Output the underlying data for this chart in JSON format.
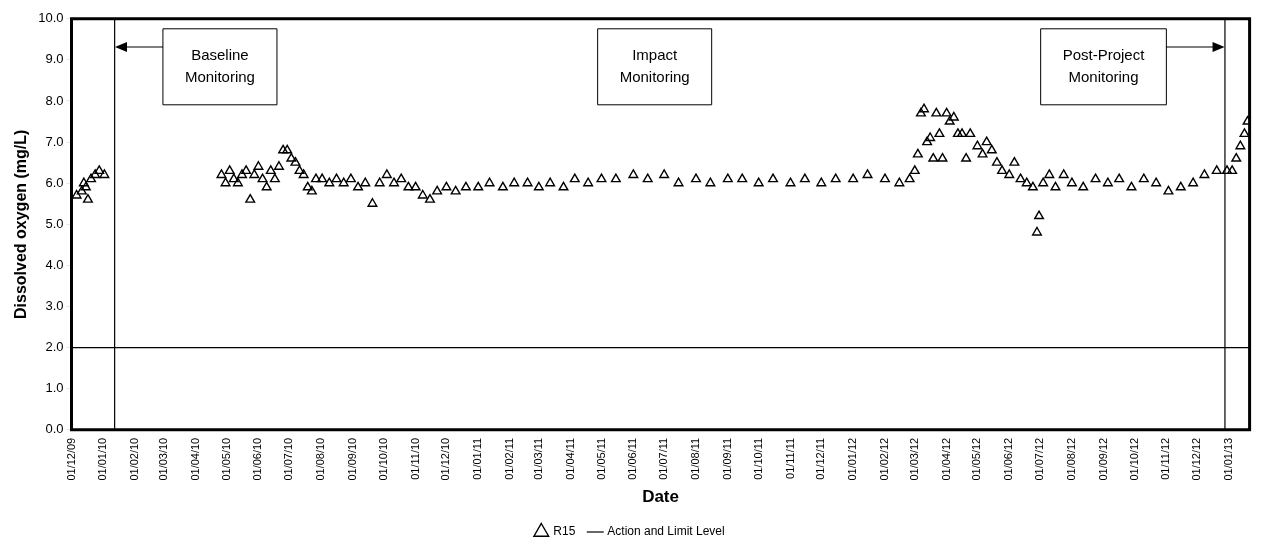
{
  "chart_data": {
    "type": "scatter",
    "xlabel": "Date",
    "ylabel": "Dissolved oxygen (mg/L)",
    "xlim": [
      "2009-12-01",
      "2013-01-21"
    ],
    "ylim": [
      0,
      10
    ],
    "xticks": [
      {
        "value": "2009-12-01",
        "label": "01/12/09"
      },
      {
        "value": "2010-01-01",
        "label": "01/01/10"
      },
      {
        "value": "2010-02-01",
        "label": "01/02/10"
      },
      {
        "value": "2010-03-01",
        "label": "01/03/10"
      },
      {
        "value": "2010-04-01",
        "label": "01/04/10"
      },
      {
        "value": "2010-05-01",
        "label": "01/05/10"
      },
      {
        "value": "2010-06-01",
        "label": "01/06/10"
      },
      {
        "value": "2010-07-01",
        "label": "01/07/10"
      },
      {
        "value": "2010-08-01",
        "label": "01/08/10"
      },
      {
        "value": "2010-09-01",
        "label": "01/09/10"
      },
      {
        "value": "2010-10-01",
        "label": "01/10/10"
      },
      {
        "value": "2010-11-01",
        "label": "01/11/10"
      },
      {
        "value": "2010-12-01",
        "label": "01/12/10"
      },
      {
        "value": "2011-01-01",
        "label": "01/01/11"
      },
      {
        "value": "2011-02-01",
        "label": "01/02/11"
      },
      {
        "value": "2011-03-01",
        "label": "01/03/11"
      },
      {
        "value": "2011-04-01",
        "label": "01/04/11"
      },
      {
        "value": "2011-05-01",
        "label": "01/05/11"
      },
      {
        "value": "2011-06-01",
        "label": "01/06/11"
      },
      {
        "value": "2011-07-01",
        "label": "01/07/11"
      },
      {
        "value": "2011-08-01",
        "label": "01/08/11"
      },
      {
        "value": "2011-09-01",
        "label": "01/09/11"
      },
      {
        "value": "2011-10-01",
        "label": "01/10/11"
      },
      {
        "value": "2011-11-01",
        "label": "01/11/11"
      },
      {
        "value": "2011-12-01",
        "label": "01/12/11"
      },
      {
        "value": "2012-01-01",
        "label": "01/01/12"
      },
      {
        "value": "2012-02-01",
        "label": "01/02/12"
      },
      {
        "value": "2012-03-01",
        "label": "01/03/12"
      },
      {
        "value": "2012-04-01",
        "label": "01/04/12"
      },
      {
        "value": "2012-05-01",
        "label": "01/05/12"
      },
      {
        "value": "2012-06-01",
        "label": "01/06/12"
      },
      {
        "value": "2012-07-01",
        "label": "01/07/12"
      },
      {
        "value": "2012-08-01",
        "label": "01/08/12"
      },
      {
        "value": "2012-09-01",
        "label": "01/09/12"
      },
      {
        "value": "2012-10-01",
        "label": "01/10/12"
      },
      {
        "value": "2012-11-01",
        "label": "01/11/12"
      },
      {
        "value": "2012-12-01",
        "label": "01/12/12"
      },
      {
        "value": "2013-01-01",
        "label": "01/01/13"
      }
    ],
    "yticks": [
      {
        "value": 0,
        "label": "0.0"
      },
      {
        "value": 1,
        "label": "1.0"
      },
      {
        "value": 2,
        "label": "2.0"
      },
      {
        "value": 3,
        "label": "3.0"
      },
      {
        "value": 4,
        "label": "4.0"
      },
      {
        "value": 5,
        "label": "5.0"
      },
      {
        "value": 6,
        "label": "6.0"
      },
      {
        "value": 7,
        "label": "7.0"
      },
      {
        "value": 8,
        "label": "8.0"
      },
      {
        "value": 9,
        "label": "9.0"
      },
      {
        "value": 10,
        "label": "10.0"
      }
    ],
    "grid": false,
    "legend": "bottom",
    "marker": "triangle",
    "series": [
      {
        "name": "R15",
        "color": "#000000",
        "x": [
          "2009-12-06",
          "2009-12-11",
          "2009-12-13",
          "2009-12-15",
          "2009-12-17",
          "2009-12-20",
          "2009-12-24",
          "2009-12-28",
          "2010-01-02",
          "2010-04-26",
          "2010-04-30",
          "2010-05-04",
          "2010-05-08",
          "2010-05-12",
          "2010-05-16",
          "2010-05-20",
          "2010-05-24",
          "2010-05-28",
          "2010-06-01",
          "2010-06-05",
          "2010-06-09",
          "2010-06-13",
          "2010-06-17",
          "2010-06-21",
          "2010-06-25",
          "2010-06-29",
          "2010-07-03",
          "2010-07-07",
          "2010-07-11",
          "2010-07-15",
          "2010-07-19",
          "2010-07-23",
          "2010-07-27",
          "2010-08-02",
          "2010-08-09",
          "2010-08-16",
          "2010-08-23",
          "2010-08-30",
          "2010-09-06",
          "2010-09-13",
          "2010-09-20",
          "2010-09-27",
          "2010-10-04",
          "2010-10-11",
          "2010-10-18",
          "2010-10-25",
          "2010-11-01",
          "2010-11-08",
          "2010-11-15",
          "2010-11-22",
          "2010-12-01",
          "2010-12-10",
          "2010-12-20",
          "2011-01-01",
          "2011-01-12",
          "2011-01-25",
          "2011-02-05",
          "2011-02-18",
          "2011-03-01",
          "2011-03-12",
          "2011-03-25",
          "2011-04-05",
          "2011-04-18",
          "2011-05-01",
          "2011-05-15",
          "2011-06-01",
          "2011-06-15",
          "2011-07-01",
          "2011-07-15",
          "2011-08-01",
          "2011-08-15",
          "2011-09-01",
          "2011-09-15",
          "2011-10-01",
          "2011-10-15",
          "2011-11-01",
          "2011-11-15",
          "2011-12-01",
          "2011-12-15",
          "2012-01-01",
          "2012-01-15",
          "2012-02-01",
          "2012-02-15",
          "2012-02-25",
          "2012-03-01",
          "2012-03-04",
          "2012-03-07",
          "2012-03-10",
          "2012-03-13",
          "2012-03-16",
          "2012-03-19",
          "2012-03-22",
          "2012-03-25",
          "2012-03-28",
          "2012-04-01",
          "2012-04-04",
          "2012-04-08",
          "2012-04-12",
          "2012-04-16",
          "2012-04-20",
          "2012-04-24",
          "2012-05-01",
          "2012-05-06",
          "2012-05-10",
          "2012-05-15",
          "2012-05-20",
          "2012-05-25",
          "2012-06-01",
          "2012-06-06",
          "2012-06-12",
          "2012-06-18",
          "2012-06-24",
          "2012-06-28",
          "2012-06-30",
          "2012-07-04",
          "2012-07-10",
          "2012-07-16",
          "2012-07-24",
          "2012-08-01",
          "2012-08-12",
          "2012-08-24",
          "2012-09-05",
          "2012-09-16",
          "2012-09-28",
          "2012-10-10",
          "2012-10-22",
          "2012-11-03",
          "2012-11-15",
          "2012-11-27",
          "2012-12-08",
          "2012-12-20",
          "2012-12-30",
          "2013-01-04",
          "2013-01-08",
          "2013-01-12",
          "2013-01-16",
          "2013-01-19"
        ],
        "values": [
          5.7,
          5.8,
          6.0,
          5.9,
          5.6,
          6.1,
          6.2,
          6.3,
          6.2,
          6.2,
          6.0,
          6.3,
          6.1,
          6.0,
          6.2,
          6.3,
          5.6,
          6.2,
          6.4,
          6.1,
          5.9,
          6.3,
          6.1,
          6.4,
          6.8,
          6.8,
          6.6,
          6.5,
          6.3,
          6.2,
          5.9,
          5.8,
          6.1,
          6.1,
          6.0,
          6.1,
          6.0,
          6.1,
          5.9,
          6.0,
          5.5,
          6.0,
          6.2,
          6.0,
          6.1,
          5.9,
          5.9,
          5.7,
          5.6,
          5.8,
          5.9,
          5.8,
          5.9,
          5.9,
          6.0,
          5.9,
          6.0,
          6.0,
          5.9,
          6.0,
          5.9,
          6.1,
          6.0,
          6.1,
          6.1,
          6.2,
          6.1,
          6.2,
          6.0,
          6.1,
          6.0,
          6.1,
          6.1,
          6.0,
          6.1,
          6.0,
          6.1,
          6.0,
          6.1,
          6.1,
          6.2,
          6.1,
          6.0,
          6.1,
          6.3,
          6.7,
          7.7,
          7.8,
          7.0,
          7.1,
          6.6,
          7.7,
          7.2,
          6.6,
          7.7,
          7.5,
          7.6,
          7.2,
          7.2,
          6.6,
          7.2,
          6.9,
          6.7,
          7.0,
          6.8,
          6.5,
          6.3,
          6.2,
          6.5,
          6.1,
          6.0,
          5.9,
          4.8,
          5.2,
          6.0,
          6.2,
          5.9,
          6.2,
          6.0,
          5.9,
          6.1,
          6.0,
          6.1,
          5.9,
          6.1,
          6.0,
          5.8,
          5.9,
          6.0,
          6.2,
          6.3,
          6.3,
          6.3,
          6.6,
          6.9,
          7.2,
          7.5
        ]
      }
    ],
    "ref_lines": [
      {
        "axis": "y",
        "value": 2,
        "label": "Action and Limit Level",
        "color": "#000000",
        "line_style": "solid"
      },
      {
        "axis": "x",
        "value": "2010-01-12",
        "color": "#000000"
      },
      {
        "axis": "x",
        "value": "2012-12-28",
        "color": "#000000"
      }
    ],
    "annotations": [
      "Baseline Monitoring",
      "Impact Monitoring",
      "Post-Project Monitoring"
    ]
  }
}
